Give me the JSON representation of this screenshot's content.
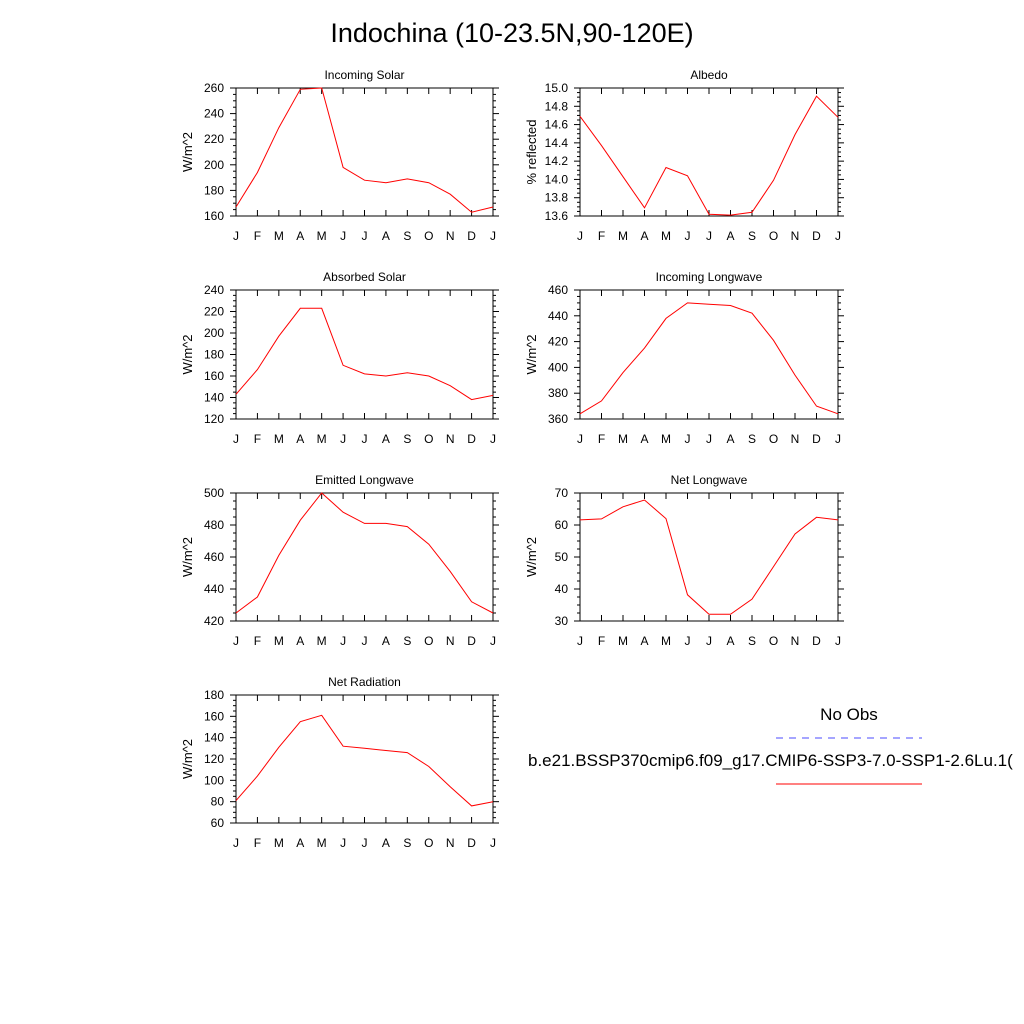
{
  "title": "Indochina (10-23.5N,90-120E)",
  "colors": {
    "model": "#ff0000",
    "obs": "#0000ff"
  },
  "legend": {
    "obs_label": "No Obs",
    "model_label": "b.e21.BSSP370cmip6.f09_g17.CMIP6-SSP3-7.0-SSP1-2.6Lu.1("
  },
  "chart_data": [
    {
      "type": "line",
      "title": "Incoming Solar",
      "ylabel": "W/m^2",
      "categories": [
        "J",
        "F",
        "M",
        "A",
        "M",
        "J",
        "J",
        "A",
        "S",
        "O",
        "N",
        "D",
        "J"
      ],
      "ylim": [
        160,
        260
      ],
      "yticks": [
        160,
        180,
        200,
        220,
        240,
        260
      ],
      "ytick_labels": [
        "160",
        "180",
        "200",
        "220",
        "240",
        "260"
      ],
      "series": [
        {
          "values": [
            167,
            194,
            229,
            259,
            260,
            198,
            188,
            186,
            189,
            186,
            177,
            163,
            167
          ]
        }
      ]
    },
    {
      "type": "line",
      "title": "Albedo",
      "ylabel": "% reflected",
      "categories": [
        "J",
        "F",
        "M",
        "A",
        "M",
        "J",
        "J",
        "A",
        "S",
        "O",
        "N",
        "D",
        "J"
      ],
      "ylim": [
        13.6,
        15.0
      ],
      "yticks": [
        13.6,
        13.8,
        14.0,
        14.2,
        14.4,
        14.6,
        14.8,
        15.0
      ],
      "ytick_labels": [
        "13.6",
        "13.8",
        "14.0",
        "14.2",
        "14.4",
        "14.6",
        "14.8",
        "15.0"
      ],
      "series": [
        {
          "values": [
            14.69,
            14.37,
            14.03,
            13.69,
            14.13,
            14.04,
            13.62,
            13.61,
            13.64,
            13.99,
            14.49,
            14.91,
            14.68
          ]
        }
      ]
    },
    {
      "type": "line",
      "title": "Absorbed Solar",
      "ylabel": "W/m^2",
      "categories": [
        "J",
        "F",
        "M",
        "A",
        "M",
        "J",
        "J",
        "A",
        "S",
        "O",
        "N",
        "D",
        "J"
      ],
      "ylim": [
        120,
        240
      ],
      "yticks": [
        120,
        140,
        160,
        180,
        200,
        220,
        240
      ],
      "ytick_labels": [
        "120",
        "140",
        "160",
        "180",
        "200",
        "220",
        "240"
      ],
      "series": [
        {
          "values": [
            143,
            166,
            197,
            223,
            223,
            170,
            162,
            160,
            163,
            160,
            151,
            138,
            142
          ]
        }
      ]
    },
    {
      "type": "line",
      "title": "Incoming Longwave",
      "ylabel": "W/m^2",
      "categories": [
        "J",
        "F",
        "M",
        "A",
        "M",
        "J",
        "J",
        "A",
        "S",
        "O",
        "N",
        "D",
        "J"
      ],
      "ylim": [
        360,
        460
      ],
      "yticks": [
        360,
        380,
        400,
        420,
        440,
        460
      ],
      "ytick_labels": [
        "360",
        "380",
        "400",
        "420",
        "440",
        "460"
      ],
      "series": [
        {
          "values": [
            364,
            374,
            396,
            415,
            438,
            450,
            449,
            448,
            442,
            421,
            394,
            370,
            364
          ]
        }
      ]
    },
    {
      "type": "line",
      "title": "Emitted Longwave",
      "ylabel": "W/m^2",
      "categories": [
        "J",
        "F",
        "M",
        "A",
        "M",
        "J",
        "J",
        "A",
        "S",
        "O",
        "N",
        "D",
        "J"
      ],
      "ylim": [
        420,
        500
      ],
      "yticks": [
        420,
        440,
        460,
        480,
        500
      ],
      "ytick_labels": [
        "420",
        "440",
        "460",
        "480",
        "500"
      ],
      "series": [
        {
          "values": [
            425,
            435,
            461,
            483,
            500,
            488,
            481,
            481,
            479,
            468,
            451,
            432,
            425
          ]
        }
      ]
    },
    {
      "type": "line",
      "title": "Net Longwave",
      "ylabel": "W/m^2",
      "categories": [
        "J",
        "F",
        "M",
        "A",
        "M",
        "J",
        "J",
        "A",
        "S",
        "O",
        "N",
        "D",
        "J"
      ],
      "ylim": [
        30,
        70
      ],
      "yticks": [
        30,
        40,
        50,
        60,
        70
      ],
      "ytick_labels": [
        "30",
        "40",
        "50",
        "60",
        "70"
      ],
      "series": [
        {
          "values": [
            61.6,
            61.9,
            65.7,
            67.8,
            62.0,
            38.2,
            32.1,
            32.1,
            36.8,
            47.0,
            57.2,
            62.4,
            61.6
          ]
        }
      ]
    },
    {
      "type": "line",
      "title": "Net Radiation",
      "ylabel": "W/m^2",
      "categories": [
        "J",
        "F",
        "M",
        "A",
        "M",
        "J",
        "J",
        "A",
        "S",
        "O",
        "N",
        "D",
        "J"
      ],
      "ylim": [
        60,
        180
      ],
      "yticks": [
        60,
        80,
        100,
        120,
        140,
        160,
        180
      ],
      "ytick_labels": [
        "60",
        "80",
        "100",
        "120",
        "140",
        "160",
        "180"
      ],
      "series": [
        {
          "values": [
            81,
            104,
            131,
            155,
            161,
            132,
            130,
            128,
            126,
            113,
            94,
            76,
            80
          ]
        }
      ]
    }
  ]
}
